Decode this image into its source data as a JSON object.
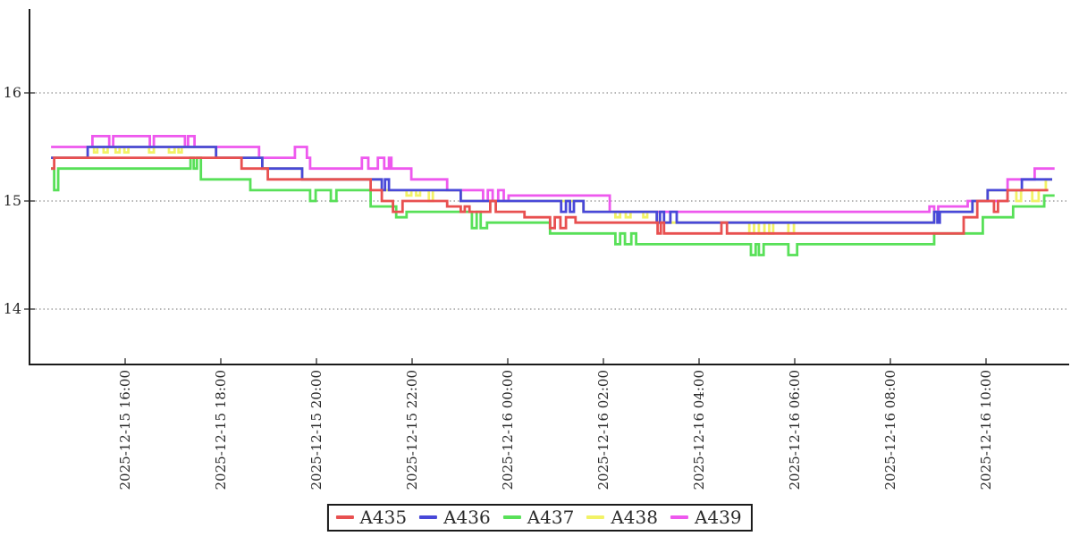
{
  "chart_data": {
    "type": "line",
    "title": "",
    "xlabel": "",
    "ylabel": "",
    "grid": "horizontal-dotted",
    "legend_position": "bottom-center",
    "time_origin_minutes_label": "minutes since 2025-12-15 14:25",
    "x_axis": {
      "ticks": [
        {
          "t": 95,
          "label": "2025-12-15 16:00"
        },
        {
          "t": 215,
          "label": "2025-12-15 18:00"
        },
        {
          "t": 335,
          "label": "2025-12-15 20:00"
        },
        {
          "t": 455,
          "label": "2025-12-15 22:00"
        },
        {
          "t": 575,
          "label": "2025-12-16 00:00"
        },
        {
          "t": 695,
          "label": "2025-12-16 02:00"
        },
        {
          "t": 815,
          "label": "2025-12-16 04:00"
        },
        {
          "t": 935,
          "label": "2025-12-16 06:00"
        },
        {
          "t": 1055,
          "label": "2025-12-16 08:00"
        },
        {
          "t": 1175,
          "label": "2025-12-16 10:00"
        }
      ]
    },
    "y_axis": {
      "ticks": [
        {
          "value": 16,
          "label": "16"
        },
        {
          "value": 15,
          "label": "15"
        },
        {
          "value": 14,
          "label": "14"
        }
      ],
      "range_approx": [
        13.5,
        16.8
      ]
    },
    "colors": {
      "axis": "#1a1a1a",
      "grid": "#6f6f6f",
      "tick_text": "#2b2b2b"
    },
    "draw_order": [
      "A439",
      "A438",
      "A437",
      "A436",
      "A435"
    ],
    "series": [
      {
        "name": "A435",
        "color": "#e85050",
        "end": 1253,
        "points": [
          [
            2,
            15.3
          ],
          [
            6,
            15.4
          ],
          [
            241,
            15.3
          ],
          [
            274,
            15.2
          ],
          [
            403,
            15.1
          ],
          [
            417,
            15.0
          ],
          [
            431,
            14.9
          ],
          [
            443,
            15.0
          ],
          [
            499,
            14.95
          ],
          [
            516,
            14.9
          ],
          [
            521,
            14.95
          ],
          [
            527,
            14.9
          ],
          [
            553,
            15.0
          ],
          [
            560,
            14.9
          ],
          [
            596,
            14.85
          ],
          [
            628,
            14.75
          ],
          [
            634,
            14.85
          ],
          [
            641,
            14.75
          ],
          [
            648,
            14.85
          ],
          [
            660,
            14.8
          ],
          [
            763,
            14.7
          ],
          [
            767,
            14.8
          ],
          [
            771,
            14.7
          ],
          [
            843,
            14.8
          ],
          [
            850,
            14.7
          ],
          [
            1147,
            14.85
          ],
          [
            1164,
            15.0
          ],
          [
            1185,
            14.9
          ],
          [
            1190,
            15.0
          ],
          [
            1202,
            15.1
          ]
        ]
      },
      {
        "name": "A436",
        "color": "#4848d8",
        "end": 1258,
        "points": [
          [
            2,
            15.4
          ],
          [
            48,
            15.5
          ],
          [
            209,
            15.4
          ],
          [
            267,
            15.3
          ],
          [
            317,
            15.2
          ],
          [
            417,
            15.1
          ],
          [
            421,
            15.2
          ],
          [
            426,
            15.1
          ],
          [
            516,
            15.0
          ],
          [
            642,
            14.9
          ],
          [
            648,
            15.0
          ],
          [
            653,
            14.9
          ],
          [
            658,
            15.0
          ],
          [
            670,
            14.9
          ],
          [
            762,
            14.8
          ],
          [
            766,
            14.9
          ],
          [
            771,
            14.8
          ],
          [
            779,
            14.9
          ],
          [
            787,
            14.8
          ],
          [
            1110,
            14.9
          ],
          [
            1114,
            14.8
          ],
          [
            1117,
            14.9
          ],
          [
            1158,
            15.0
          ],
          [
            1177,
            15.1
          ],
          [
            1220,
            15.2
          ]
        ]
      },
      {
        "name": "A437",
        "color": "#58e058",
        "end": 1261,
        "points": [
          [
            2,
            15.3
          ],
          [
            6,
            15.1
          ],
          [
            11,
            15.3
          ],
          [
            177,
            15.4
          ],
          [
            181,
            15.3
          ],
          [
            185,
            15.4
          ],
          [
            190,
            15.2
          ],
          [
            252,
            15.1
          ],
          [
            327,
            15.0
          ],
          [
            334,
            15.1
          ],
          [
            353,
            15.0
          ],
          [
            360,
            15.1
          ],
          [
            403,
            14.95
          ],
          [
            435,
            14.85
          ],
          [
            448,
            14.9
          ],
          [
            530,
            14.75
          ],
          [
            536,
            14.9
          ],
          [
            541,
            14.75
          ],
          [
            549,
            14.8
          ],
          [
            628,
            14.7
          ],
          [
            710,
            14.6
          ],
          [
            716,
            14.7
          ],
          [
            722,
            14.6
          ],
          [
            730,
            14.7
          ],
          [
            736,
            14.6
          ],
          [
            880,
            14.5
          ],
          [
            886,
            14.6
          ],
          [
            890,
            14.5
          ],
          [
            896,
            14.6
          ],
          [
            927,
            14.5
          ],
          [
            938,
            14.6
          ],
          [
            1110,
            14.7
          ],
          [
            1171,
            14.85
          ],
          [
            1209,
            14.95
          ],
          [
            1248,
            15.05
          ]
        ]
      },
      {
        "name": "A438",
        "color": "#f2f266",
        "end": 1258,
        "points": [
          [
            2,
            15.4
          ],
          [
            48,
            15.5
          ],
          [
            56,
            15.45
          ],
          [
            60,
            15.5
          ],
          [
            68,
            15.45
          ],
          [
            73,
            15.5
          ],
          [
            83,
            15.45
          ],
          [
            88,
            15.5
          ],
          [
            94,
            15.45
          ],
          [
            99,
            15.5
          ],
          [
            125,
            15.45
          ],
          [
            131,
            15.5
          ],
          [
            150,
            15.45
          ],
          [
            157,
            15.5
          ],
          [
            162,
            15.45
          ],
          [
            166,
            15.5
          ],
          [
            209,
            15.4
          ],
          [
            267,
            15.3
          ],
          [
            317,
            15.2
          ],
          [
            417,
            15.1
          ],
          [
            448,
            15.05
          ],
          [
            454,
            15.1
          ],
          [
            460,
            15.05
          ],
          [
            465,
            15.1
          ],
          [
            476,
            15.0
          ],
          [
            481,
            15.1
          ],
          [
            516,
            15.0
          ],
          [
            670,
            14.9
          ],
          [
            710,
            14.85
          ],
          [
            716,
            14.9
          ],
          [
            723,
            14.85
          ],
          [
            729,
            14.9
          ],
          [
            745,
            14.85
          ],
          [
            750,
            14.9
          ],
          [
            762,
            14.8
          ],
          [
            878,
            14.7
          ],
          [
            884,
            14.8
          ],
          [
            890,
            14.7
          ],
          [
            897,
            14.8
          ],
          [
            903,
            14.7
          ],
          [
            908,
            14.8
          ],
          [
            927,
            14.7
          ],
          [
            934,
            14.8
          ],
          [
            1110,
            14.9
          ],
          [
            1158,
            15.0
          ],
          [
            1177,
            15.1
          ],
          [
            1213,
            15.0
          ],
          [
            1219,
            15.1
          ],
          [
            1233,
            15.0
          ],
          [
            1241,
            15.1
          ],
          [
            1250,
            15.2
          ]
        ]
      },
      {
        "name": "A439",
        "color": "#ee58ee",
        "end": 1261,
        "points": [
          [
            2,
            15.5
          ],
          [
            54,
            15.6
          ],
          [
            75,
            15.5
          ],
          [
            80,
            15.6
          ],
          [
            126,
            15.5
          ],
          [
            131,
            15.6
          ],
          [
            170,
            15.5
          ],
          [
            174,
            15.6
          ],
          [
            182,
            15.5
          ],
          [
            263,
            15.4
          ],
          [
            308,
            15.5
          ],
          [
            323,
            15.4
          ],
          [
            327,
            15.3
          ],
          [
            392,
            15.4
          ],
          [
            400,
            15.3
          ],
          [
            412,
            15.4
          ],
          [
            420,
            15.3
          ],
          [
            426,
            15.4
          ],
          [
            429,
            15.3
          ],
          [
            454,
            15.2
          ],
          [
            499,
            15.1
          ],
          [
            544,
            15.0
          ],
          [
            550,
            15.1
          ],
          [
            556,
            15.0
          ],
          [
            563,
            15.1
          ],
          [
            570,
            15.0
          ],
          [
            576,
            15.05
          ],
          [
            703,
            14.9
          ],
          [
            1104,
            14.95
          ],
          [
            1110,
            14.9
          ],
          [
            1115,
            14.95
          ],
          [
            1152,
            15.0
          ],
          [
            1202,
            15.2
          ],
          [
            1236,
            15.3
          ]
        ]
      }
    ]
  }
}
